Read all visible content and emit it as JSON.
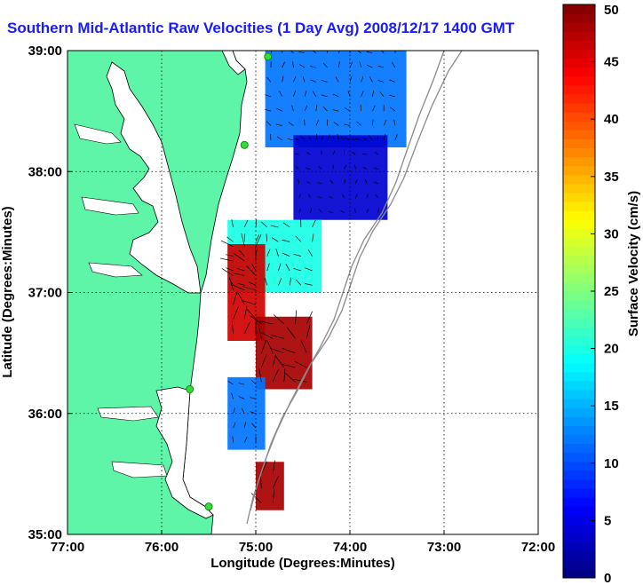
{
  "title": "Southern Mid-Atlantic Raw Velocities (1 Day Avg) 2008/12/17 1400 GMT",
  "map": {
    "x_axis_label": "Longitude (Degrees:Minutes)",
    "y_axis_label": "Latitude (Degrees:Minutes)",
    "x_ticks": [
      {
        "value": -77,
        "label": "77:00"
      },
      {
        "value": -76,
        "label": "76:00"
      },
      {
        "value": -75,
        "label": "75:00"
      },
      {
        "value": -74,
        "label": "74:00"
      },
      {
        "value": -73,
        "label": "73:00"
      },
      {
        "value": -72,
        "label": "72:00"
      }
    ],
    "y_ticks": [
      {
        "value": 35,
        "label": "35:00"
      },
      {
        "value": 36,
        "label": "36:00"
      },
      {
        "value": 37,
        "label": "37:00"
      },
      {
        "value": 38,
        "label": "38:00"
      },
      {
        "value": 39,
        "label": "39:00"
      }
    ],
    "lon_range": [
      -77,
      -72
    ],
    "lat_range": [
      35,
      39
    ],
    "land_color": "#5ff5a8",
    "water_color": "#ffffff",
    "gridlines": "dotted",
    "stations": [
      {
        "lon": -74.87,
        "lat": 38.95
      },
      {
        "lon": -75.12,
        "lat": 38.22
      },
      {
        "lon": -75.7,
        "lat": 36.2
      },
      {
        "lon": -75.5,
        "lat": 35.23
      }
    ]
  },
  "colorbar": {
    "label": "Surface Velocity (cm/s)",
    "ticks": [
      "0",
      "5",
      "10",
      "15",
      "20",
      "25",
      "30",
      "35",
      "40",
      "45",
      "50"
    ],
    "min": 0,
    "max": 50,
    "colormap": "jet"
  },
  "chart_data": {
    "type": "heatmap",
    "title": "Southern Mid-Atlantic Raw Velocities (1 Day Avg) 2008/12/17 1400 GMT",
    "xlabel": "Longitude (Degrees:Minutes)",
    "ylabel": "Latitude (Degrees:Minutes)",
    "xlim": [
      -77,
      -72
    ],
    "ylim": [
      35,
      39
    ],
    "value_label": "Surface Velocity (cm/s)",
    "value_range": [
      0,
      50
    ],
    "regions": [
      {
        "lon_range": [
          -74.9,
          -73.4
        ],
        "lat_range": [
          38.2,
          39.0
        ],
        "approx_speed": 12
      },
      {
        "lon_range": [
          -74.6,
          -73.6
        ],
        "lat_range": [
          37.6,
          38.3
        ],
        "approx_speed": 4
      },
      {
        "lon_range": [
          -75.3,
          -74.3
        ],
        "lat_range": [
          37.0,
          37.6
        ],
        "approx_speed": 20
      },
      {
        "lon_range": [
          -75.3,
          -74.9
        ],
        "lat_range": [
          36.6,
          37.4
        ],
        "approx_speed": 46
      },
      {
        "lon_range": [
          -75.0,
          -74.4
        ],
        "lat_range": [
          36.2,
          36.8
        ],
        "approx_speed": 48
      },
      {
        "lon_range": [
          -75.3,
          -74.9
        ],
        "lat_range": [
          35.7,
          36.3
        ],
        "approx_speed": 12
      },
      {
        "lon_range": [
          -75.0,
          -74.7
        ],
        "lat_range": [
          35.2,
          35.6
        ],
        "approx_speed": 48
      }
    ]
  }
}
